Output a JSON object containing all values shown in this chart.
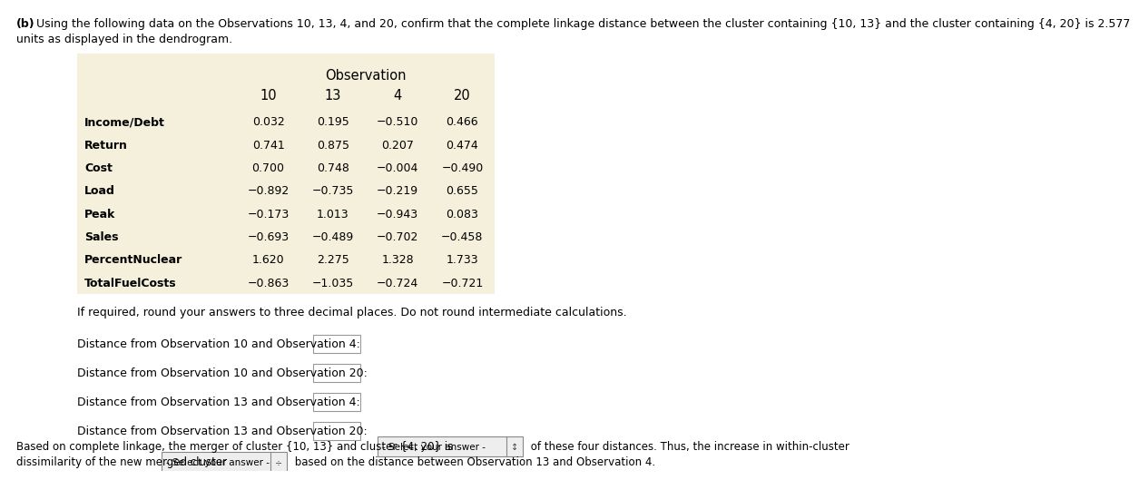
{
  "title_bold": "(b)",
  "title_text": " Using the following data on the Observations 10, 13, 4, and 20, confirm that the complete linkage distance between the cluster containing {10, 13} and the cluster containing {4, 20} is 2.577",
  "title_text2": "units as displayed in the dendrogram.",
  "table_header": "Observation",
  "col_headers": [
    "10",
    "13",
    "4",
    "20"
  ],
  "row_labels": [
    "Income/Debt",
    "Return",
    "Cost",
    "Load",
    "Peak",
    "Sales",
    "PercentNuclear",
    "TotalFuelCosts"
  ],
  "row_labels_bold": [
    "PercentNuclear",
    "TotalFuelCosts"
  ],
  "table_data": [
    [
      "0.032",
      "0.195",
      "−0.510",
      "0.466"
    ],
    [
      "0.741",
      "0.875",
      "0.207",
      "0.474"
    ],
    [
      "0.700",
      "0.748",
      "−0.004",
      "−0.490"
    ],
    [
      "−0.892",
      "−0.735",
      "−0.219",
      "0.655"
    ],
    [
      "−0.173",
      "1.013",
      "−0.943",
      "0.083"
    ],
    [
      "−0.693",
      "−0.489",
      "−0.702",
      "−0.458"
    ],
    [
      "1.620",
      "2.275",
      "1.328",
      "1.733"
    ],
    [
      "−0.863",
      "−1.035",
      "−0.724",
      "−0.721"
    ]
  ],
  "note_text": "If required, round your answers to three decimal places. Do not round intermediate calculations.",
  "distance_labels": [
    "Distance from Observation 10 and Observation 4:",
    "Distance from Observation 10 and Observation 20:",
    "Distance from Observation 13 and Observation 4:",
    "Distance from Observation 13 and Observation 20:"
  ],
  "bottom_text1_pre": "Based on complete linkage, the merger of cluster {10, 13} and cluster {4, 20} is ",
  "bottom_text1_dropdown": "- Select your answer -",
  "bottom_text1_post": " of these four distances. Thus, the increase in within-cluster",
  "bottom_text2_pre": "dissimilarity of the new merged cluster ",
  "bottom_text2_dropdown": "- Select your answer - ÷",
  "bottom_text2_post": " based on the distance between Observation 13 and Observation 4.",
  "table_bg": "#F5F0DC",
  "page_bg": "#FFFFFF",
  "font_size": 9.0
}
